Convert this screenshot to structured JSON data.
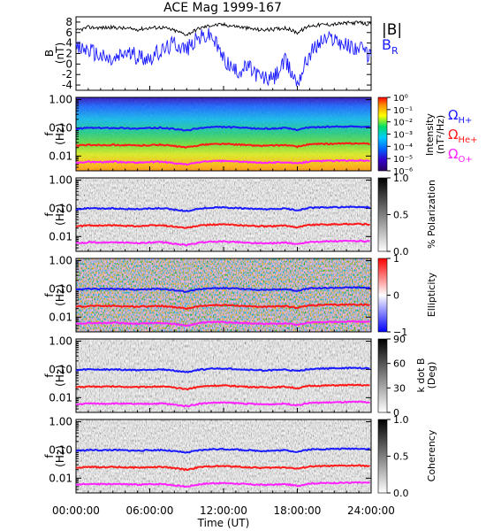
{
  "title": "ACE Mag 1999-167",
  "colors": {
    "btotal": "#000000",
    "br": "#1a1aff",
    "h": "#1a1aff",
    "he": "#ff1a1a",
    "o": "#ff22ff",
    "axis": "#000000"
  },
  "chart_data": [
    {
      "type": "line",
      "panel": "magnetic-field",
      "ylabel": "B\n(nT)",
      "ylim": [
        -5,
        9
      ],
      "yticks": [
        "-4",
        "-2",
        "0",
        "2",
        "4",
        "6",
        "8"
      ],
      "xlim": [
        0,
        24
      ],
      "legend": [
        "|B|",
        "B_R"
      ],
      "series": [
        {
          "name": "|B|",
          "x": [
            0,
            1,
            2,
            3,
            4,
            5,
            6,
            7,
            8,
            9,
            10,
            11,
            12,
            13,
            14,
            15,
            16,
            17,
            18,
            19,
            20,
            21,
            22,
            23,
            24
          ],
          "values": [
            6.3,
            7.0,
            6.9,
            7.0,
            6.8,
            6.6,
            6.9,
            7.0,
            6.4,
            5.6,
            6.8,
            7.4,
            7.5,
            7.2,
            6.8,
            6.5,
            6.6,
            6.9,
            6.0,
            7.3,
            7.5,
            7.6,
            7.8,
            7.9,
            7.5
          ]
        },
        {
          "name": "B_R",
          "x": [
            0,
            1,
            2,
            3,
            4,
            5,
            6,
            7,
            8,
            9,
            10,
            11,
            12,
            13,
            14,
            15,
            16,
            17,
            18,
            19,
            20,
            21,
            22,
            23,
            24
          ],
          "values": [
            3.0,
            2.8,
            1.5,
            0.5,
            2.2,
            1.5,
            1.2,
            2.5,
            4.0,
            2.8,
            5.0,
            5.5,
            1.0,
            -1.5,
            -0.5,
            -2.5,
            -3.0,
            0.5,
            -3.5,
            2.0,
            4.5,
            5.0,
            3.5,
            3.0,
            1.5
          ]
        }
      ]
    },
    {
      "type": "heatmap",
      "panel": "power-spectrum",
      "ylabel": "f\n(Hz)",
      "ylim": [
        0.003,
        1.2
      ],
      "yticks": [
        "1.00",
        "0.10",
        "0.01"
      ],
      "scale": "log",
      "colorbar_label": "Intensity\n(nT²/Hz)",
      "colorbar_ticks": [
        "10⁰",
        "10⁻¹",
        "10⁻²",
        "10⁻³",
        "10⁻⁴",
        "10⁻⁵",
        "10⁻⁶"
      ],
      "cyclotron_lines": [
        "ΩH+",
        "ΩHe+",
        "ΩO+"
      ]
    },
    {
      "type": "heatmap",
      "panel": "polarization",
      "ylabel": "f\n(Hz)",
      "scale": "log",
      "colorbar_label": "% Polarization",
      "colorbar_ticks": [
        "1.0",
        "0.5",
        "0.0"
      ]
    },
    {
      "type": "heatmap",
      "panel": "ellipticity",
      "ylabel": "f\n(Hz)",
      "scale": "log",
      "colorbar_label": "Ellipticity",
      "colorbar_ticks": [
        "1",
        "0",
        "−1"
      ]
    },
    {
      "type": "heatmap",
      "panel": "k-dot-b",
      "ylabel": "f\n(Hz)",
      "scale": "log",
      "colorbar_label": "k dot B\n(Deg)",
      "colorbar_ticks": [
        "90",
        "60",
        "30",
        "0"
      ]
    },
    {
      "type": "heatmap",
      "panel": "coherency",
      "ylabel": "f\n(Hz)",
      "scale": "log",
      "colorbar_label": "Coherency",
      "colorbar_ticks": [
        "1.0",
        "0.5",
        "0.0"
      ]
    }
  ],
  "cyclotron": {
    "x": [
      0,
      1,
      2,
      3,
      4,
      5,
      6,
      7,
      8,
      9,
      10,
      11,
      12,
      13,
      14,
      15,
      16,
      17,
      18,
      19,
      20,
      21,
      22,
      23,
      24
    ],
    "h_hz": [
      0.092,
      0.1,
      0.098,
      0.1,
      0.097,
      0.094,
      0.098,
      0.1,
      0.09,
      0.08,
      0.097,
      0.106,
      0.107,
      0.103,
      0.097,
      0.093,
      0.094,
      0.098,
      0.086,
      0.104,
      0.107,
      0.109,
      0.111,
      0.112,
      0.107
    ]
  },
  "xaxis": {
    "label": "Time (UT)",
    "ticks": [
      "00:00:00",
      "06:00:00",
      "12:00:00",
      "18:00:00",
      "24:00:00"
    ]
  },
  "legend": {
    "btotal": "|B|",
    "br_main": "B",
    "br_sub": "R",
    "omega": "Ω",
    "h_sub": "H+",
    "he_sub": "He+",
    "o_sub": "O+"
  },
  "labels": {
    "f": "f",
    "hz": "(Hz)",
    "b": "B",
    "nt": "(nT)",
    "intensity1": "Intensity",
    "intensity2": "(nT²/Hz)",
    "pol": "% Polarization",
    "ell": "Ellipticity",
    "kdb1": "k dot B",
    "kdb2": "(Deg)",
    "coh": "Coherency"
  }
}
